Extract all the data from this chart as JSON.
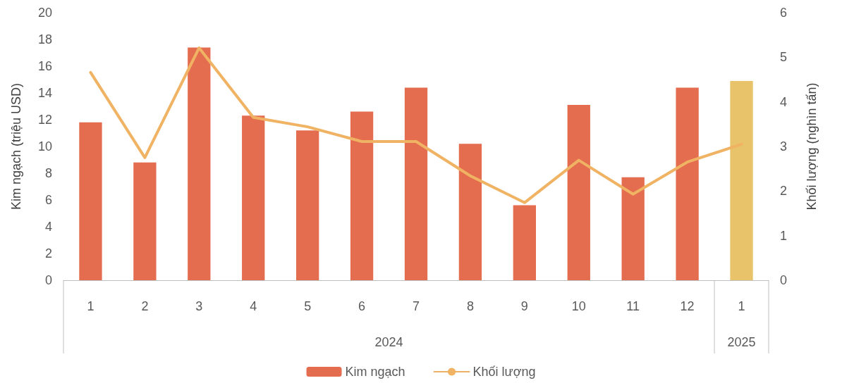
{
  "chart_data": {
    "type": "bar",
    "categories": [
      "1",
      "2",
      "3",
      "4",
      "5",
      "6",
      "7",
      "8",
      "9",
      "10",
      "11",
      "12",
      "1"
    ],
    "ylabel": "Kim ngạch (triệu USD)",
    "y2label": "Khối lượng (nghìn tấn)",
    "ylim": [
      0,
      20
    ],
    "yticks": [
      0,
      2,
      4,
      6,
      8,
      10,
      12,
      14,
      16,
      18,
      20
    ],
    "y2lim": [
      0,
      6
    ],
    "y2ticks": [
      0,
      1,
      2,
      3,
      4,
      5,
      6
    ],
    "series": [
      {
        "name": "Kim ngạch",
        "values": [
          11.8,
          8.8,
          17.4,
          12.3,
          11.2,
          12.6,
          14.4,
          10.2,
          5.6,
          13.1,
          7.7,
          14.4,
          14.9
        ],
        "colors": [
          "#e46c4f",
          "#e46c4f",
          "#e46c4f",
          "#e46c4f",
          "#e46c4f",
          "#e46c4f",
          "#e46c4f",
          "#e46c4f",
          "#e46c4f",
          "#e46c4f",
          "#e46c4f",
          "#e46c4f",
          "#e8c36a"
        ]
      },
      {
        "name": "Khối lượng",
        "type": "line",
        "axis": "y2",
        "color": "#f0b263",
        "values": [
          4.66,
          2.75,
          5.21,
          3.65,
          3.44,
          3.11,
          3.11,
          2.34,
          1.74,
          2.69,
          1.93,
          2.65,
          3.05
        ]
      }
    ],
    "annotations": [
      "2024",
      "2025"
    ],
    "legend": "bottom",
    "grid": false
  }
}
